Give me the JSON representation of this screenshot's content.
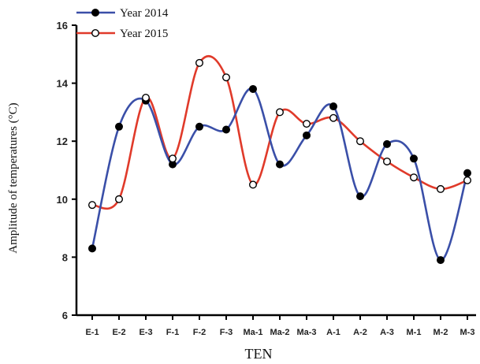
{
  "chart_data": {
    "type": "line",
    "title": "",
    "xlabel": "TEN",
    "ylabel": "Amplitude of temperatures (°C)",
    "categories": [
      "E-1",
      "E-2",
      "E-3",
      "F-1",
      "F-2",
      "F-3",
      "Ma-1",
      "Ma-2",
      "Ma-3",
      "A-1",
      "A-2",
      "A-3",
      "M-1",
      "M-2",
      "M-3"
    ],
    "ylim": [
      6,
      16
    ],
    "yticks": [
      6,
      8,
      10,
      12,
      14,
      16
    ],
    "grid": false,
    "legend_position": "top-left",
    "series": [
      {
        "name": "Year 2014",
        "color": "#3a4fa8",
        "marker": "filled-circle",
        "values": [
          8.3,
          12.5,
          13.4,
          11.2,
          12.5,
          12.4,
          13.8,
          11.2,
          12.2,
          13.2,
          10.1,
          11.9,
          11.4,
          7.9,
          10.9
        ]
      },
      {
        "name": "Year 2015",
        "color": "#e03a2a",
        "marker": "open-circle",
        "values": [
          9.8,
          10.0,
          13.5,
          11.4,
          14.7,
          14.2,
          10.5,
          13.0,
          12.6,
          12.8,
          12.0,
          11.3,
          10.75,
          10.35,
          10.65
        ]
      }
    ]
  }
}
